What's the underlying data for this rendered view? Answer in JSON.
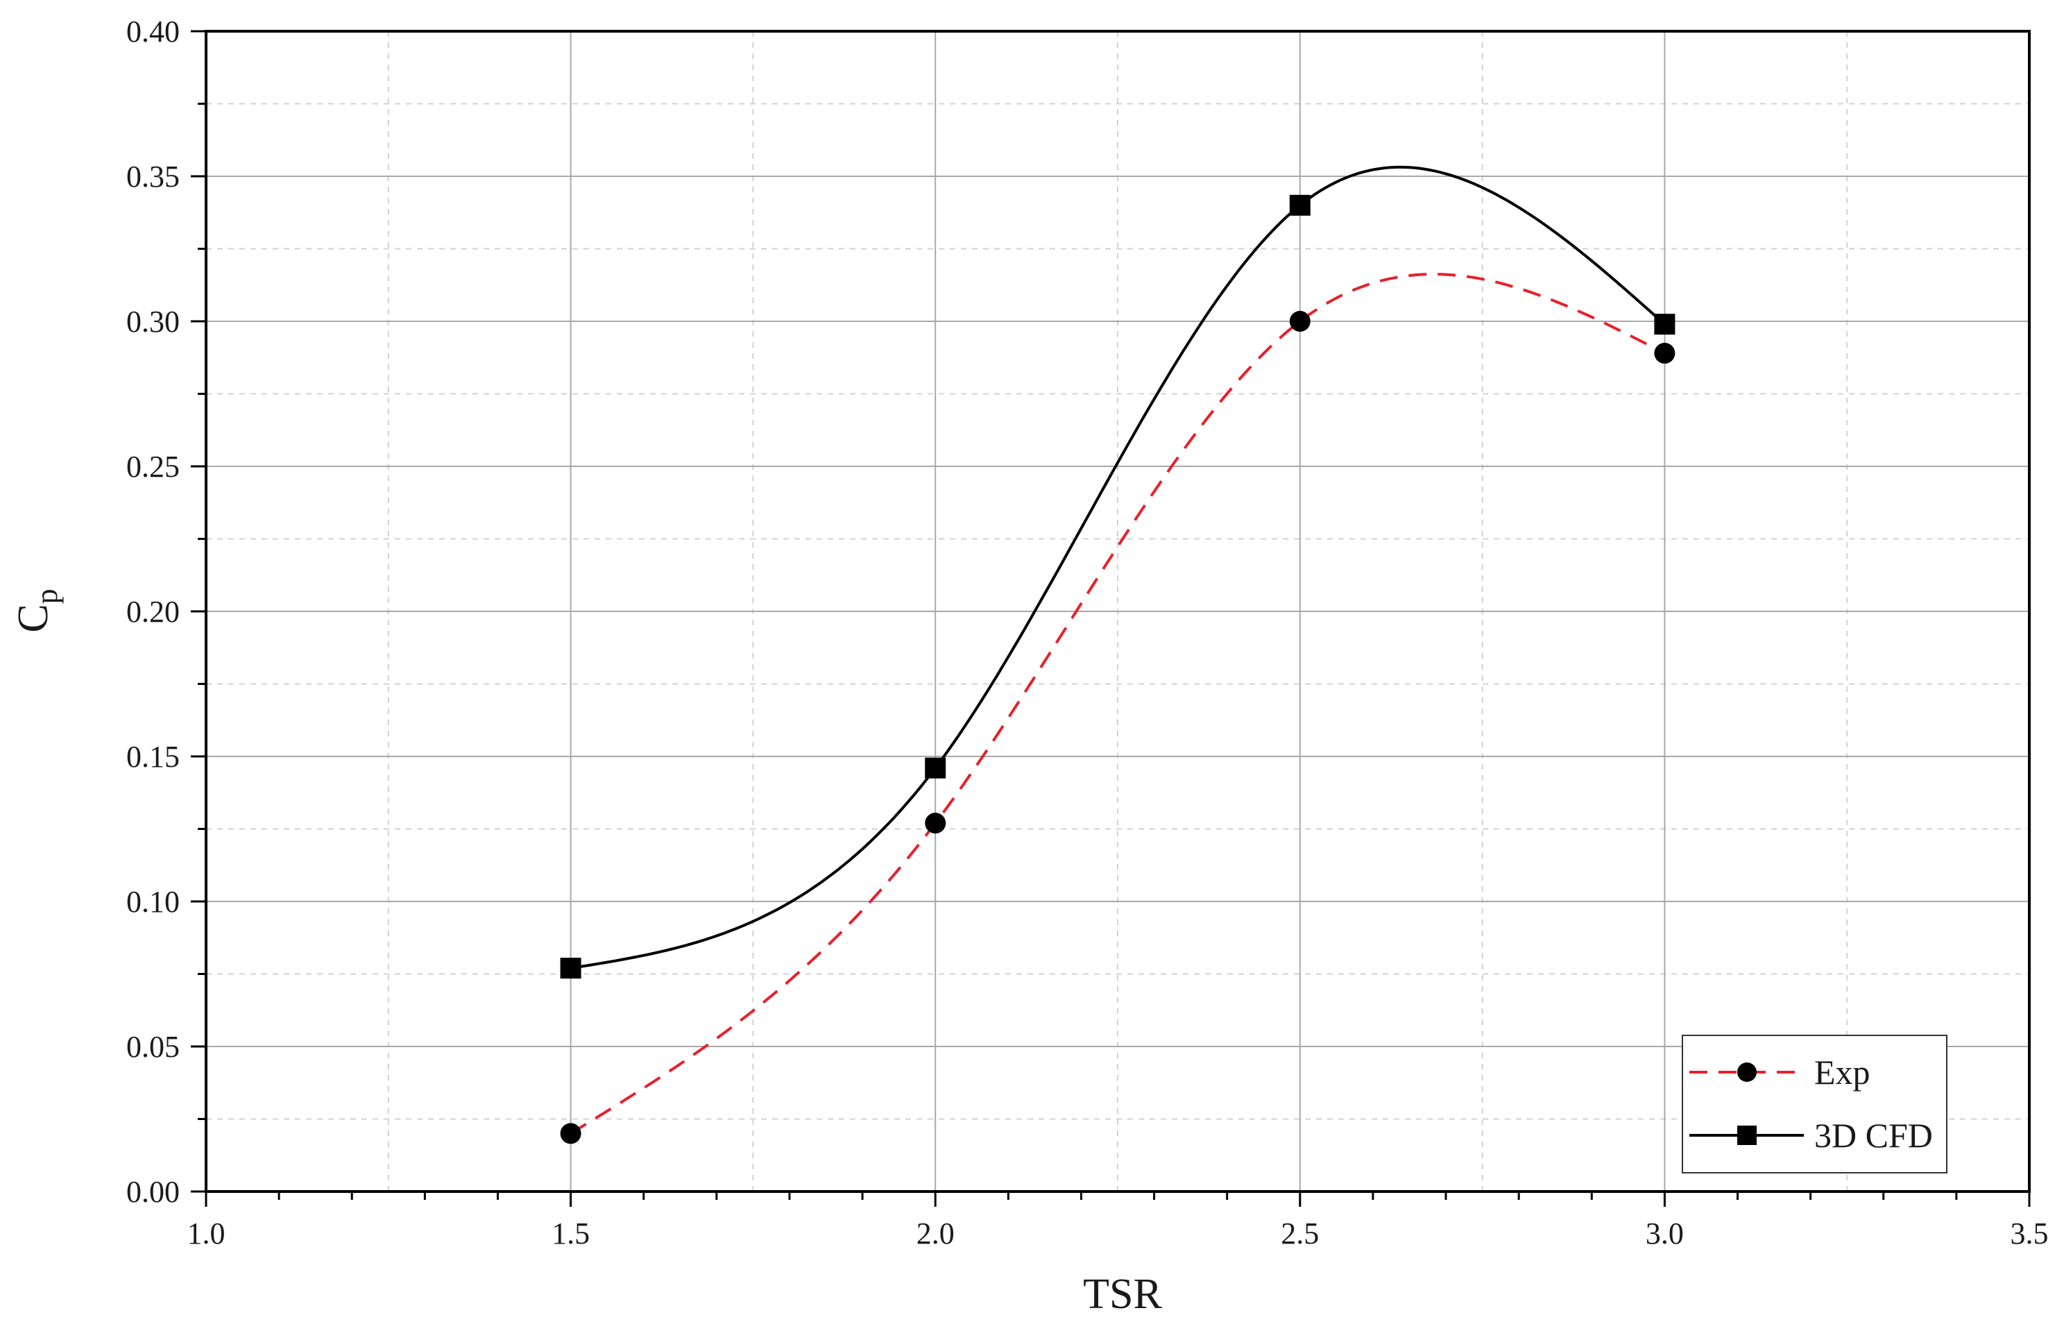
{
  "chart_data": {
    "type": "line",
    "xlabel": "TSR",
    "ylabel": "Cp",
    "ylabel_main": "C",
    "ylabel_sub": "p",
    "xlim": [
      1.0,
      3.5
    ],
    "ylim": [
      0.0,
      0.4
    ],
    "x_ticks": [
      "1.0",
      "1.5",
      "2.0",
      "2.5",
      "3.0",
      "3.5"
    ],
    "x_tick_values": [
      1.0,
      1.5,
      2.0,
      2.5,
      3.0,
      3.5
    ],
    "y_ticks": [
      "0.00",
      "0.05",
      "0.10",
      "0.15",
      "0.20",
      "0.25",
      "0.30",
      "0.35",
      "0.40"
    ],
    "y_tick_values": [
      0.0,
      0.05,
      0.1,
      0.15,
      0.2,
      0.25,
      0.3,
      0.35,
      0.4
    ],
    "grid": true,
    "legend_position": "bottom-right",
    "series": [
      {
        "name": "Exp",
        "x": [
          1.5,
          2.0,
          2.5,
          3.0
        ],
        "y": [
          0.02,
          0.127,
          0.3,
          0.289
        ],
        "color": "#e8202a",
        "marker_color": "#000000",
        "line_style": "dashed",
        "marker": "circle"
      },
      {
        "name": "3D CFD",
        "x": [
          1.5,
          2.0,
          2.5,
          3.0
        ],
        "y": [
          0.077,
          0.146,
          0.34,
          0.299
        ],
        "color": "#000000",
        "marker_color": "#000000",
        "line_style": "solid",
        "marker": "square"
      }
    ]
  }
}
